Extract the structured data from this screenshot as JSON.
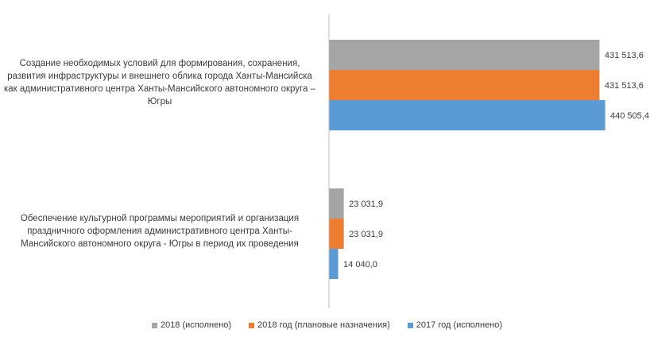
{
  "chart_data": {
    "type": "bar",
    "orientation": "horizontal",
    "categories": [
      "Создание необходимых условий для формирования, сохранения, развития инфраструктуры и внешнего облика города Ханты-Мансийска как административного центра Ханты-Мансийского автономного округа – Югры",
      "Обеспечение культурной программы мероприятий и организация праздничного оформления административного центра Ханты-Мансийского автономного округа - Югры в период их проведения"
    ],
    "series": [
      {
        "name": "2018 (исполнено)",
        "values": [
          431513.6,
          23031.9
        ],
        "labels": [
          "431 513,6",
          "23 031,9"
        ],
        "color": "#a5a5a5"
      },
      {
        "name": "2018 год (плановые назначения)",
        "values": [
          431513.6,
          23031.9
        ],
        "labels": [
          "431 513,6",
          "23 031,9"
        ],
        "color": "#ed7d31"
      },
      {
        "name": "2017 год (исполнено)",
        "values": [
          440505.4,
          14040.0
        ],
        "labels": [
          "440 505,4",
          "14 040,0"
        ],
        "color": "#5b9bd5"
      }
    ],
    "xlim": [
      0,
      450000
    ],
    "grid": false,
    "legend_position": "bottom",
    "title": "",
    "xlabel": "",
    "ylabel": ""
  }
}
